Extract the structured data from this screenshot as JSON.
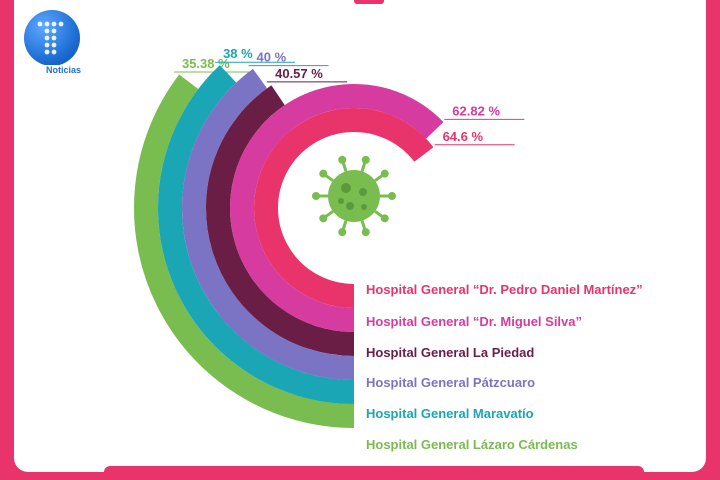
{
  "logo": {
    "text": "Noticias"
  },
  "chart_data": {
    "type": "radial_bar",
    "title": "",
    "series": [
      {
        "name": "Hospital General “Dr. Pedro Daniel Martínez”",
        "value": 64.6,
        "label": "64.6 %",
        "color": "#e8336b"
      },
      {
        "name": "Hospital General “Dr. Miguel Silva”",
        "value": 62.82,
        "label": "62.82 %",
        "color": "#d63ba0"
      },
      {
        "name": "Hospital General La Piedad",
        "value": 40.57,
        "label": "40.57 %",
        "color": "#6a1d45"
      },
      {
        "name": "Hospital General Pátzcuaro",
        "value": 40,
        "label": "40 %",
        "color": "#7b73c4"
      },
      {
        "name": "Hospital General Maravatío",
        "value": 38,
        "label": "38 %",
        "color": "#1aa6b5"
      },
      {
        "name": "Hospital General Lázaro Cárdenas",
        "value": 35.38,
        "label": "35.38 %",
        "color": "#79bc4f"
      }
    ]
  },
  "icons": {
    "center": "virus-icon"
  }
}
